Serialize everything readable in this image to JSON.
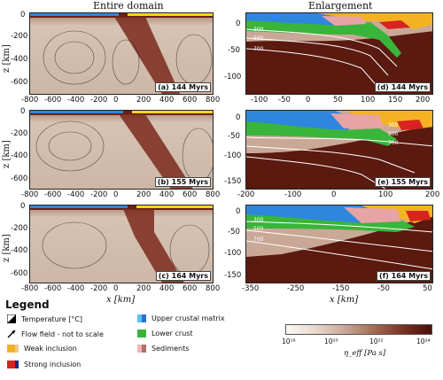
{
  "headers": {
    "left": "Entire domain",
    "right": "Enlargement"
  },
  "axes": {
    "z_label": "z [km]",
    "x_label": "x [km]"
  },
  "panels": [
    {
      "label": "(a) 144 Myrs"
    },
    {
      "label": "(b) 155 Myrs"
    },
    {
      "label": "(c) 164 Myrs"
    },
    {
      "label": "(d) 144 Myrs"
    },
    {
      "label": "(e) 155 Myrs"
    },
    {
      "label": "(f) 164 Myrs"
    }
  ],
  "left_yticks": [
    "0",
    "-200",
    "-400",
    "-600"
  ],
  "left_xticks": [
    "-800",
    "-600",
    "-400",
    "-200",
    "0",
    "200",
    "400",
    "600",
    "800"
  ],
  "right_yticks_d": [
    "0",
    "-50",
    "-100"
  ],
  "right_yticks_e": [
    "0",
    "-50",
    "-100",
    "-150"
  ],
  "right_yticks_f": [
    "0",
    "-50",
    "-100",
    "-150"
  ],
  "right_xticks_d": [
    "-100",
    "-50",
    "0",
    "50",
    "100",
    "150",
    "200"
  ],
  "right_xticks_e": [
    "-200",
    "-100",
    "0",
    "100",
    "200"
  ],
  "right_xticks_f": [
    "-350",
    "-250",
    "-150",
    "-50",
    "50"
  ],
  "isotherms": [
    "300",
    "500",
    "700"
  ],
  "legend": {
    "title": "Legend",
    "items": [
      "Temperature [°C]",
      "Flow field - not to scale",
      "Weak inclusion",
      "Strong inclusion",
      "Upper crustal matrix",
      "Lower crust",
      "Sediments"
    ]
  },
  "colorbar": {
    "ticks": [
      "10¹⁸",
      "10²⁰",
      "10²²",
      "10²⁴"
    ],
    "label": "η_eff [Pa s]"
  },
  "colors": {
    "mantle_dark": "#4a0f0a",
    "mantle_light": "#d9c6b8",
    "upper_crust_blue": "#2e86de",
    "lower_crust_green": "#38b53a",
    "weak_orange": "#f4b223",
    "sediment_pink": "#e8a4a4",
    "strong_red": "#d8231f"
  }
}
